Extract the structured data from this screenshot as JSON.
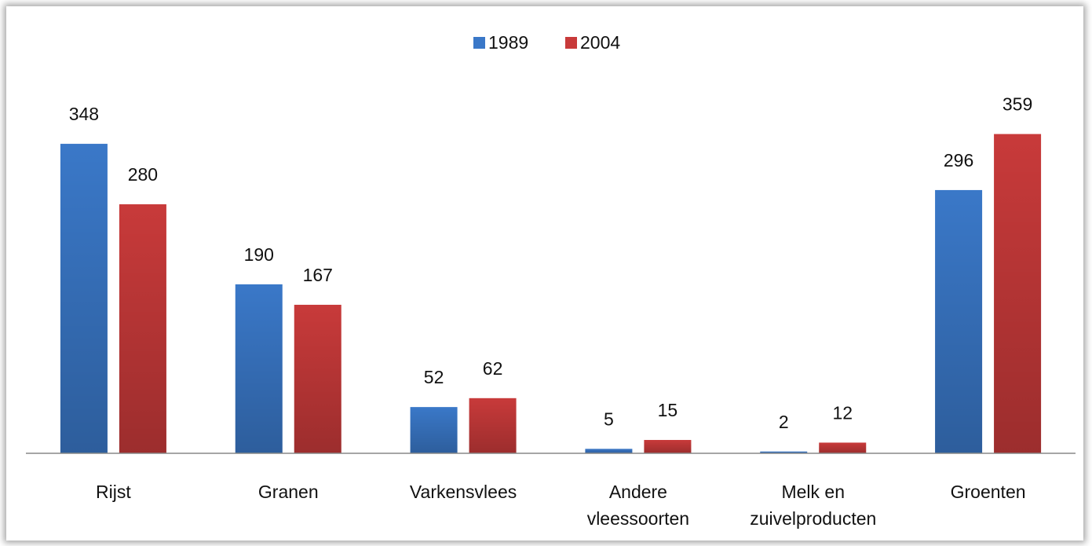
{
  "chart_data": {
    "type": "bar",
    "categories": [
      "Rijst",
      "Granen",
      "Varkensvlees",
      "Andere vleessoorten",
      "Melk en zuivelproducten",
      "Groenten"
    ],
    "series": [
      {
        "name": "1989",
        "color": "#3a78c8",
        "values": [
          348,
          190,
          52,
          5,
          2,
          296
        ]
      },
      {
        "name": "2004",
        "color": "#c83a3a",
        "values": [
          280,
          167,
          62,
          15,
          12,
          359
        ]
      }
    ],
    "legend": "top",
    "data_labels": true
  }
}
